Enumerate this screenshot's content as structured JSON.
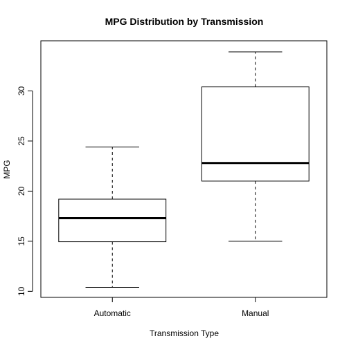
{
  "chart_data": {
    "type": "boxplot",
    "title": "MPG Distribution by Transmission",
    "xlabel": "Transmission Type",
    "ylabel": "MPG",
    "ylim": [
      9.4,
      35.0
    ],
    "yticks": [
      10,
      15,
      20,
      25,
      30
    ],
    "categories": [
      "Automatic",
      "Manual"
    ],
    "boxes": [
      {
        "name": "Automatic",
        "whisker_low": 10.4,
        "q1": 14.95,
        "median": 17.3,
        "q3": 19.2,
        "whisker_high": 24.4
      },
      {
        "name": "Manual",
        "whisker_low": 15.0,
        "q1": 21.0,
        "median": 22.8,
        "q3": 30.4,
        "whisker_high": 33.9
      }
    ],
    "grid": false,
    "legend": "none"
  }
}
